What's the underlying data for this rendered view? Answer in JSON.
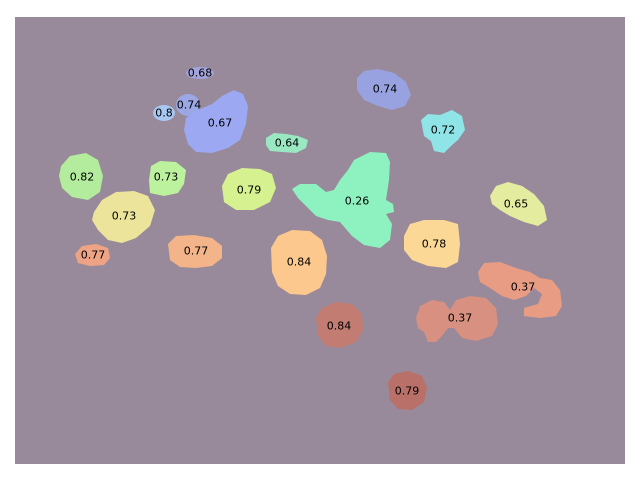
{
  "colors": {
    "page_bg": "#ffffff",
    "panel_bg": "#988a9a"
  },
  "regions": [
    {
      "id": "r1",
      "score": "0.68",
      "color": "#a3a3dc"
    },
    {
      "id": "r2",
      "score": "0.74",
      "color": "#9ca8e6"
    },
    {
      "id": "r3",
      "score": "0.8",
      "color": "#a8c8f2"
    },
    {
      "id": "r4",
      "score": "0.67",
      "color": "#9ca8f2"
    },
    {
      "id": "r5",
      "score": "0.74",
      "color": "#98a2e0"
    },
    {
      "id": "r6",
      "score": "0.72",
      "color": "#8ee4e6"
    },
    {
      "id": "r7",
      "score": "0.64",
      "color": "#9ae8c2"
    },
    {
      "id": "r8",
      "score": "0.82",
      "color": "#b2ec9c"
    },
    {
      "id": "r9",
      "score": "0.73",
      "color": "#bcf29e"
    },
    {
      "id": "r10",
      "score": "0.79",
      "color": "#d6f290"
    },
    {
      "id": "r11",
      "score": "0.26",
      "color": "#8ef2c0"
    },
    {
      "id": "r12",
      "score": "0.73",
      "color": "#ece49a"
    },
    {
      "id": "r13",
      "score": "0.65",
      "color": "#e4eca0"
    },
    {
      "id": "r14",
      "score": "0.77",
      "color": "#eea484"
    },
    {
      "id": "r15",
      "score": "0.77",
      "color": "#f2b488"
    },
    {
      "id": "r16",
      "score": "0.84",
      "color": "#fcc88e"
    },
    {
      "id": "r17",
      "score": "0.78",
      "color": "#fcd896"
    },
    {
      "id": "r18",
      "score": "0.37",
      "color": "#e89c84"
    },
    {
      "id": "r19",
      "score": "0.37",
      "color": "#d89080"
    },
    {
      "id": "r20",
      "score": "0.84",
      "color": "#c27c72"
    },
    {
      "id": "r21",
      "score": "0.79",
      "color": "#b87068"
    }
  ]
}
